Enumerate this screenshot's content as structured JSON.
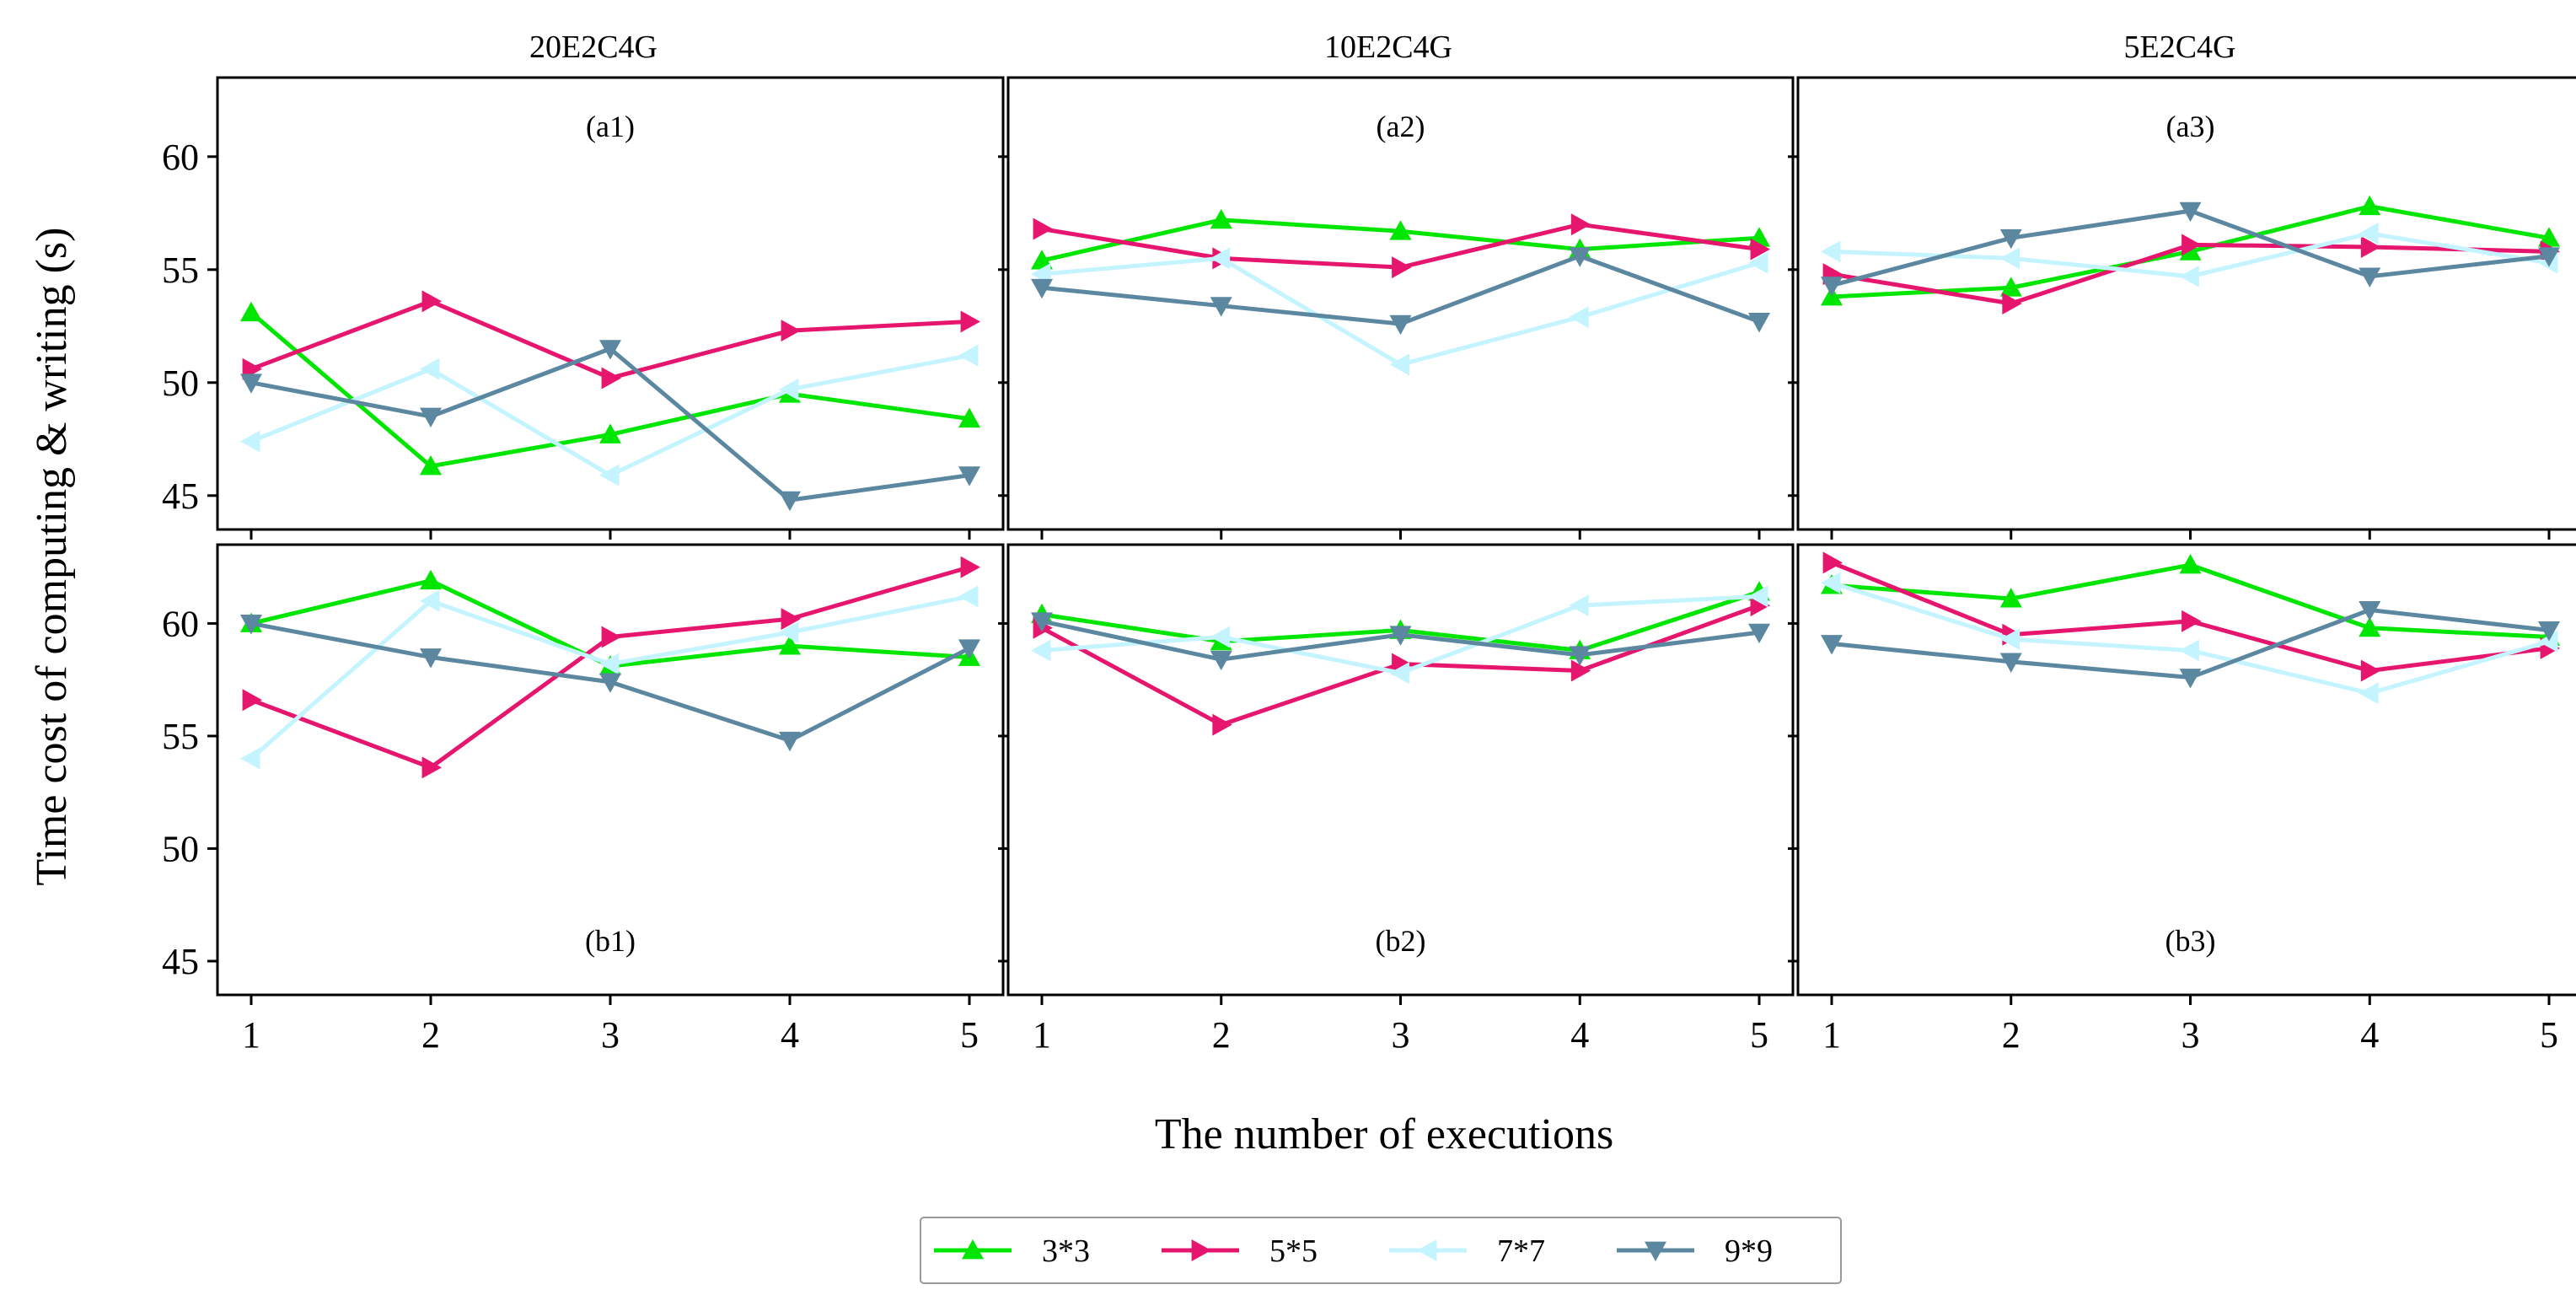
{
  "figure": {
    "column_titles": [
      "20E2C4G",
      "10E2C4G",
      "5E2C4G"
    ],
    "xlabel": "The number of executions",
    "ylabel": "Time cost of computing & writing (s)"
  },
  "chart_data": {
    "type": "line",
    "x": [
      1,
      2,
      3,
      4,
      5
    ],
    "xticks": [
      "1",
      "2",
      "3",
      "4",
      "5"
    ],
    "ylim": [
      43.5,
      63.5
    ],
    "yticks": [
      45,
      50,
      55,
      60
    ],
    "yticks_labels": [
      "45",
      "50",
      "55",
      "60"
    ],
    "legend": [
      {
        "name": "3*3",
        "color": "#00e600",
        "marker": "triangle-up"
      },
      {
        "name": "5*5",
        "color": "#e6166e",
        "marker": "triangle-right"
      },
      {
        "name": "7*7",
        "color": "#c4f4ff",
        "marker": "triangle-left"
      },
      {
        "name": "9*9",
        "color": "#5b87a0",
        "marker": "triangle-down"
      }
    ],
    "panels": [
      {
        "id": "a1",
        "label": "(a1)",
        "label_pos": "top",
        "series": [
          {
            "name": "3*3",
            "values": [
              53.1,
              46.3,
              47.7,
              49.5,
              48.4
            ]
          },
          {
            "name": "5*5",
            "values": [
              50.6,
              53.6,
              50.2,
              52.3,
              52.7
            ]
          },
          {
            "name": "7*7",
            "values": [
              47.4,
              50.6,
              45.9,
              49.7,
              51.2
            ]
          },
          {
            "name": "9*9",
            "values": [
              50.0,
              48.5,
              51.5,
              44.8,
              45.9
            ]
          }
        ]
      },
      {
        "id": "a2",
        "label": "(a2)",
        "label_pos": "top",
        "series": [
          {
            "name": "3*3",
            "values": [
              55.4,
              57.2,
              56.7,
              55.9,
              56.4
            ]
          },
          {
            "name": "5*5",
            "values": [
              56.8,
              55.5,
              55.1,
              57.0,
              55.9
            ]
          },
          {
            "name": "7*7",
            "values": [
              54.8,
              55.5,
              50.8,
              52.9,
              55.3
            ]
          },
          {
            "name": "9*9",
            "values": [
              54.2,
              53.4,
              52.6,
              55.6,
              52.7
            ]
          }
        ]
      },
      {
        "id": "a3",
        "label": "(a3)",
        "label_pos": "top",
        "series": [
          {
            "name": "3*3",
            "values": [
              53.8,
              54.2,
              55.8,
              57.8,
              56.4
            ]
          },
          {
            "name": "5*5",
            "values": [
              54.8,
              53.5,
              56.1,
              56.0,
              55.8
            ]
          },
          {
            "name": "7*7",
            "values": [
              55.8,
              55.5,
              54.7,
              56.6,
              55.3
            ]
          },
          {
            "name": "9*9",
            "values": [
              54.3,
              56.4,
              57.6,
              54.7,
              55.6
            ]
          }
        ]
      },
      {
        "id": "b1",
        "label": "(b1)",
        "label_pos": "bottom",
        "series": [
          {
            "name": "3*3",
            "values": [
              60.0,
              61.9,
              58.1,
              59.0,
              58.5
            ]
          },
          {
            "name": "5*5",
            "values": [
              56.6,
              53.6,
              59.4,
              60.2,
              62.5
            ]
          },
          {
            "name": "7*7",
            "values": [
              54.0,
              61.0,
              58.2,
              59.6,
              61.2
            ]
          },
          {
            "name": "9*9",
            "values": [
              60.0,
              58.5,
              57.4,
              54.8,
              58.9
            ]
          }
        ]
      },
      {
        "id": "b2",
        "label": "(b2)",
        "label_pos": "bottom",
        "series": [
          {
            "name": "3*3",
            "values": [
              60.4,
              59.2,
              59.7,
              58.8,
              61.4
            ]
          },
          {
            "name": "5*5",
            "values": [
              59.8,
              55.5,
              58.2,
              57.9,
              60.8
            ]
          },
          {
            "name": "7*7",
            "values": [
              58.8,
              59.4,
              57.8,
              60.8,
              61.2
            ]
          },
          {
            "name": "9*9",
            "values": [
              60.1,
              58.4,
              59.5,
              58.6,
              59.6
            ]
          }
        ]
      },
      {
        "id": "b3",
        "label": "(b3)",
        "label_pos": "bottom",
        "series": [
          {
            "name": "3*3",
            "values": [
              61.7,
              61.1,
              62.6,
              59.8,
              59.4
            ]
          },
          {
            "name": "5*5",
            "values": [
              62.7,
              59.5,
              60.1,
              57.9,
              58.9
            ]
          },
          {
            "name": "7*7",
            "values": [
              61.8,
              59.3,
              58.8,
              56.9,
              59.2
            ]
          },
          {
            "name": "9*9",
            "values": [
              59.1,
              58.3,
              57.6,
              60.6,
              59.7
            ]
          }
        ]
      }
    ]
  }
}
